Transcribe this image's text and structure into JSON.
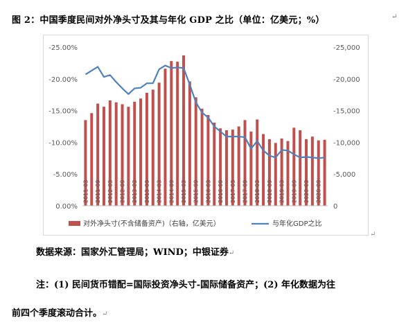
{
  "document": {
    "title": "图 2：中国季度民间对外净头寸及其与年化 GDP 之比（单位：亿美元；%）",
    "source": "数据来源：国家外汇管理局；WIND；中银证券",
    "note_line1": "注：(1) 民间货币错配=国际投资净头寸-国际储备资产；(2) 年化数据为往",
    "note_line2": "前四个季度滚动合计。",
    "paragraph_mark": "↵"
  },
  "chart_data": {
    "type": "bar",
    "categories": [
      "2011-03",
      "2011-06",
      "2011-09",
      "2011-12",
      "2012-03",
      "2012-06",
      "2012-09",
      "2012-12",
      "2013-03",
      "2013-06",
      "2013-09",
      "2013-12",
      "2014-03",
      "2014-06",
      "2014-09",
      "2014-12",
      "2015-03",
      "2015-06",
      "2015-09",
      "2015-12",
      "2016-03",
      "2016-06",
      "2016-09",
      "2016-12",
      "2017-03",
      "2017-06",
      "2017-09",
      "2017-12",
      "2018-03",
      "2018-06",
      "2018-09",
      "2018-12",
      "2019-03",
      "2019-06",
      "2019-09",
      "2019-12",
      "2020-03",
      "2020-06",
      "2020-09",
      "2020-12"
    ],
    "x_tick_labels": [
      "2011-03",
      "2011-09",
      "2012-03",
      "2012-09",
      "2013-03",
      "2013-09",
      "2014-03",
      "2014-09",
      "2015-03",
      "2015-09",
      "2016-03",
      "2016-09",
      "2017-03",
      "2017-09",
      "2018-03",
      "2018-09",
      "2019-03",
      "2019-09",
      "2020-03",
      "2020-09"
    ],
    "series": [
      {
        "name": "对外净头寸(不含储备资产)（右轴，亿美元）",
        "type": "bar",
        "axis": "right",
        "color": "#c0504d",
        "values": [
          -13500,
          -14600,
          -16100,
          -15600,
          -16600,
          -16300,
          -16000,
          -15600,
          -16400,
          -16900,
          -17800,
          -18300,
          -19400,
          -21600,
          -22800,
          -22700,
          -23700,
          -19600,
          -17100,
          -15300,
          -14300,
          -13100,
          -12200,
          -11900,
          -12000,
          -12500,
          -13500,
          -11700,
          -13600,
          -11300,
          -10500,
          -9900,
          -10600,
          -10200,
          -12300,
          -11900,
          -10500,
          -10900,
          -10300,
          -10400
        ]
      },
      {
        "name": "与年化GDP之比",
        "type": "line",
        "axis": "left",
        "color": "#4f81bd",
        "values": [
          -20.7,
          -21.3,
          -21.9,
          -20.3,
          -20.6,
          -19.5,
          -18.5,
          -17.6,
          -18.5,
          -18.6,
          -19.3,
          -19.3,
          -21.5,
          -22.1,
          -21.7,
          -21.8,
          -21.7,
          -19.1,
          -16.3,
          -14.7,
          -13.9,
          -12.5,
          -11.7,
          -10.9,
          -10.9,
          -10.9,
          -10.8,
          -9.0,
          -10.2,
          -8.7,
          -7.9,
          -7.6,
          -8.8,
          -8.7,
          -8.1,
          -7.6,
          -7.7,
          -7.6,
          -7.5,
          -7.6
        ]
      }
    ],
    "y_left": {
      "ticks": [
        "-25.00%",
        "-20.00%",
        "-15.00%",
        "-10.00%",
        "-5.00%",
        "0.00%"
      ],
      "range": [
        0,
        -25
      ]
    },
    "y_right": {
      "ticks": [
        "-25,000",
        "-20,000",
        "-15,000",
        "-10,000",
        "-5,000",
        "0"
      ],
      "range": [
        0,
        -25000
      ]
    },
    "legend": [
      {
        "label": "对外净头寸(不含储备资产)（右轴，亿美元）",
        "color": "#c0504d",
        "shape": "bar"
      },
      {
        "label": "与年化GDP之比",
        "color": "#4f81bd",
        "shape": "line"
      }
    ],
    "legend_position": "bottom",
    "grid": false
  }
}
